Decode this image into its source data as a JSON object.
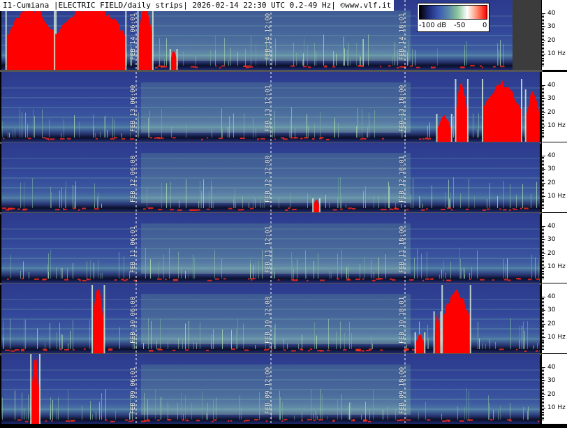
{
  "title": "I1-Cumiana |ELECTRIC FIELD/daily strips| 2026-02-14 22:30 UTC 0.2-49 Hz| ©www.vlf.it",
  "legend": {
    "min_label": "-100 dB",
    "mid_label": "-50",
    "max_label": "0",
    "colors": [
      "#000000",
      "#1e2a78",
      "#3c5ab4",
      "#5a8aa8",
      "#8cc89a",
      "#ffffff",
      "#ff8a6a",
      "#ff0000"
    ]
  },
  "chart_data": {
    "type": "heatmap",
    "ylabel": "Hz",
    "ylim": [
      0,
      49
    ],
    "y_ticks": [
      {
        "value": 10,
        "label": "10 Hz"
      },
      {
        "value": 20,
        "label": "20"
      },
      {
        "value": 30,
        "label": "30"
      },
      {
        "value": 40,
        "label": "40"
      }
    ],
    "strips": [
      {
        "date": "FEB 14",
        "markers": [
          {
            "time": "06:01",
            "label": "FEB 14  06:01"
          },
          {
            "time": "12:00",
            "label": "FEB 14  12:00"
          },
          {
            "time": "18:01",
            "label": "FEB 14  18:01"
          }
        ],
        "covered_until": 0.95,
        "bursts": [
          {
            "start": 0.01,
            "end": 0.1,
            "height": 0.95
          },
          {
            "start": 0.1,
            "end": 0.23,
            "height": 0.98
          },
          {
            "start": 0.255,
            "end": 0.28,
            "height": 0.98
          },
          {
            "start": 0.315,
            "end": 0.325,
            "height": 0.3
          }
        ]
      },
      {
        "date": "FEB 13",
        "markers": [
          {
            "time": "06:00",
            "label": "FEB 13  06:00"
          },
          {
            "time": "12:01",
            "label": "FEB 13  12:01"
          },
          {
            "time": "18:00",
            "label": "FEB 13  18:00"
          }
        ],
        "covered_until": 1.0,
        "bursts": [
          {
            "start": 0.81,
            "end": 0.835,
            "height": 0.4
          },
          {
            "start": 0.845,
            "end": 0.865,
            "height": 0.9
          },
          {
            "start": 0.895,
            "end": 0.965,
            "height": 0.9
          },
          {
            "start": 0.975,
            "end": 1.0,
            "height": 0.75
          }
        ]
      },
      {
        "date": "FEB 12",
        "markers": [
          {
            "time": "06:00",
            "label": "FEB 12  06:00"
          },
          {
            "time": "12:00",
            "label": "FEB 12  12:00"
          },
          {
            "time": "18:01",
            "label": "FEB 12  18:01"
          }
        ],
        "covered_until": 1.0,
        "bursts": [
          {
            "start": 0.58,
            "end": 0.59,
            "height": 0.2
          }
        ]
      },
      {
        "date": "FEB 11",
        "markers": [
          {
            "time": "06:01",
            "label": "FEB 11  06:01"
          },
          {
            "time": "12:01",
            "label": "FEB 11  12:01"
          },
          {
            "time": "18:00",
            "label": "FEB 11  18:00"
          }
        ],
        "covered_until": 1.0,
        "bursts": []
      },
      {
        "date": "FEB 10",
        "markers": [
          {
            "time": "06:00",
            "label": "FEB 10  06:00"
          },
          {
            "time": "12:00",
            "label": "FEB 10  12:00"
          },
          {
            "time": "18:01",
            "label": "FEB 10  18:01"
          }
        ],
        "covered_until": 1.0,
        "bursts": [
          {
            "start": 0.17,
            "end": 0.19,
            "height": 0.98
          },
          {
            "start": 0.77,
            "end": 0.785,
            "height": 0.3
          },
          {
            "start": 0.805,
            "end": 0.815,
            "height": 0.6
          },
          {
            "start": 0.82,
            "end": 0.87,
            "height": 0.98
          }
        ]
      },
      {
        "date": "FEB 09",
        "markers": [
          {
            "time": "06:01",
            "label": "FEB 09  06:01"
          },
          {
            "time": "12:00",
            "label": "FEB 09  12:00"
          },
          {
            "time": "18:00",
            "label": "FEB 09  18:00"
          }
        ],
        "covered_until": 1.0,
        "bursts": [
          {
            "start": 0.056,
            "end": 0.07,
            "height": 1.0
          }
        ]
      }
    ]
  }
}
